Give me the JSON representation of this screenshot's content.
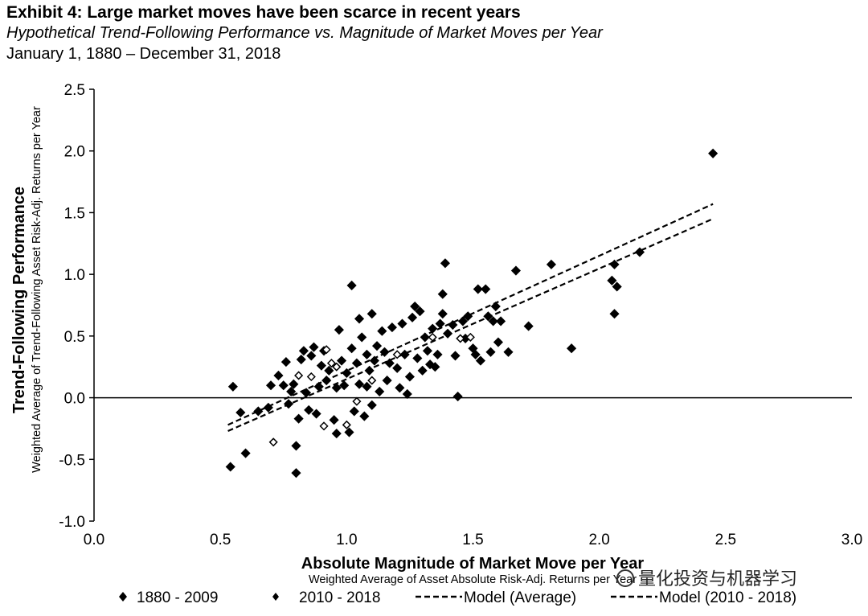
{
  "header": {
    "title": "Exhibit 4: Large market moves have been scarce in recent years",
    "subtitle": "Hypothetical Trend-Following Performance vs. Magnitude of Market Moves per Year",
    "date_range": "January 1, 1880 – December 31, 2018"
  },
  "watermark": "量化投资与机器学习",
  "chart_data": {
    "type": "scatter",
    "ylabel": "Trend-Following Performance",
    "ylabel_sub": "Weighted Average of Trend-Following Asset Risk-Adj. Returns per Year",
    "xlabel": "Absolute Magnitude of Market Move per Year",
    "xlabel_sub": "Weighted Average of Asset Absolute Risk-Adj. Returns per Year",
    "xlim": [
      0.0,
      3.0
    ],
    "ylim": [
      -1.0,
      2.5
    ],
    "x_ticks": [
      "0.0",
      "0.5",
      "1.0",
      "1.5",
      "2.0",
      "2.5",
      "3.0"
    ],
    "y_ticks": [
      "2.5",
      "2.0",
      "1.5",
      "1.0",
      "0.5",
      "0.0",
      "-0.5",
      "-1.0"
    ],
    "grid": false,
    "legend_position": "bottom",
    "series": [
      {
        "name": "1880 - 2009",
        "marker": "filled-diamond",
        "points": [
          [
            0.54,
            -0.56
          ],
          [
            0.55,
            0.09
          ],
          [
            0.58,
            -0.12
          ],
          [
            0.6,
            -0.45
          ],
          [
            0.65,
            -0.11
          ],
          [
            0.69,
            -0.08
          ],
          [
            0.7,
            0.1
          ],
          [
            0.73,
            0.18
          ],
          [
            0.75,
            0.1
          ],
          [
            0.76,
            0.29
          ],
          [
            0.77,
            -0.05
          ],
          [
            0.78,
            0.05
          ],
          [
            0.79,
            0.11
          ],
          [
            0.8,
            -0.39
          ],
          [
            0.8,
            -0.61
          ],
          [
            0.81,
            -0.17
          ],
          [
            0.82,
            0.31
          ],
          [
            0.83,
            0.38
          ],
          [
            0.84,
            0.04
          ],
          [
            0.85,
            -0.1
          ],
          [
            0.86,
            0.34
          ],
          [
            0.87,
            0.41
          ],
          [
            0.88,
            -0.13
          ],
          [
            0.89,
            0.09
          ],
          [
            0.9,
            0.26
          ],
          [
            0.91,
            0.38
          ],
          [
            0.92,
            0.14
          ],
          [
            0.93,
            0.22
          ],
          [
            0.95,
            -0.18
          ],
          [
            0.96,
            -0.29
          ],
          [
            0.96,
            0.08
          ],
          [
            0.97,
            0.55
          ],
          [
            0.98,
            0.3
          ],
          [
            0.99,
            0.1
          ],
          [
            1.0,
            0.2
          ],
          [
            1.01,
            -0.28
          ],
          [
            1.02,
            0.91
          ],
          [
            1.02,
            0.4
          ],
          [
            1.03,
            -0.11
          ],
          [
            1.04,
            0.28
          ],
          [
            1.05,
            0.64
          ],
          [
            1.05,
            0.11
          ],
          [
            1.06,
            0.49
          ],
          [
            1.07,
            -0.15
          ],
          [
            1.08,
            0.35
          ],
          [
            1.08,
            0.09
          ],
          [
            1.09,
            0.22
          ],
          [
            1.1,
            0.68
          ],
          [
            1.1,
            -0.06
          ],
          [
            1.11,
            0.3
          ],
          [
            1.12,
            0.42
          ],
          [
            1.13,
            0.05
          ],
          [
            1.14,
            0.54
          ],
          [
            1.15,
            0.37
          ],
          [
            1.16,
            0.14
          ],
          [
            1.17,
            0.28
          ],
          [
            1.18,
            0.57
          ],
          [
            1.2,
            0.24
          ],
          [
            1.21,
            0.08
          ],
          [
            1.22,
            0.6
          ],
          [
            1.23,
            0.35
          ],
          [
            1.24,
            0.03
          ],
          [
            1.25,
            0.17
          ],
          [
            1.26,
            0.65
          ],
          [
            1.27,
            0.74
          ],
          [
            1.28,
            0.32
          ],
          [
            1.29,
            0.7
          ],
          [
            1.3,
            0.22
          ],
          [
            1.31,
            0.49
          ],
          [
            1.32,
            0.38
          ],
          [
            1.33,
            0.27
          ],
          [
            1.34,
            0.56
          ],
          [
            1.35,
            0.25
          ],
          [
            1.36,
            0.35
          ],
          [
            1.37,
            0.6
          ],
          [
            1.38,
            0.84
          ],
          [
            1.38,
            0.68
          ],
          [
            1.39,
            1.09
          ],
          [
            1.4,
            0.52
          ],
          [
            1.42,
            0.59
          ],
          [
            1.43,
            0.34
          ],
          [
            1.44,
            0.01
          ],
          [
            1.46,
            0.62
          ],
          [
            1.47,
            0.48
          ],
          [
            1.48,
            0.66
          ],
          [
            1.5,
            0.4
          ],
          [
            1.51,
            0.35
          ],
          [
            1.52,
            0.88
          ],
          [
            1.53,
            0.3
          ],
          [
            1.55,
            0.88
          ],
          [
            1.56,
            0.66
          ],
          [
            1.57,
            0.37
          ],
          [
            1.58,
            0.62
          ],
          [
            1.59,
            0.74
          ],
          [
            1.6,
            0.45
          ],
          [
            1.61,
            0.62
          ],
          [
            1.64,
            0.37
          ],
          [
            1.67,
            1.03
          ],
          [
            1.72,
            0.58
          ],
          [
            1.81,
            1.08
          ],
          [
            1.89,
            0.4
          ],
          [
            2.05,
            0.95
          ],
          [
            2.06,
            0.68
          ],
          [
            2.06,
            1.08
          ],
          [
            2.07,
            0.9
          ],
          [
            2.16,
            1.18
          ],
          [
            2.45,
            1.98
          ]
        ]
      },
      {
        "name": "2010 - 2018",
        "marker": "hollow-diamond",
        "points": [
          [
            0.71,
            -0.36
          ],
          [
            0.81,
            0.18
          ],
          [
            0.86,
            0.17
          ],
          [
            0.91,
            -0.23
          ],
          [
            0.92,
            0.39
          ],
          [
            0.94,
            0.28
          ],
          [
            0.96,
            0.25
          ],
          [
            1.0,
            -0.22
          ],
          [
            1.04,
            -0.03
          ],
          [
            1.1,
            0.14
          ],
          [
            1.2,
            0.35
          ],
          [
            1.34,
            0.49
          ],
          [
            1.45,
            0.48
          ],
          [
            1.49,
            0.49
          ]
        ]
      }
    ],
    "model_lines": [
      {
        "name": "Model (Average)",
        "style": "dashed",
        "points": [
          [
            0.53,
            -0.22
          ],
          [
            2.45,
            1.57
          ]
        ]
      },
      {
        "name": "Model (2010 - 2018)",
        "style": "dashed",
        "points": [
          [
            0.53,
            -0.27
          ],
          [
            2.45,
            1.45
          ]
        ]
      }
    ]
  }
}
